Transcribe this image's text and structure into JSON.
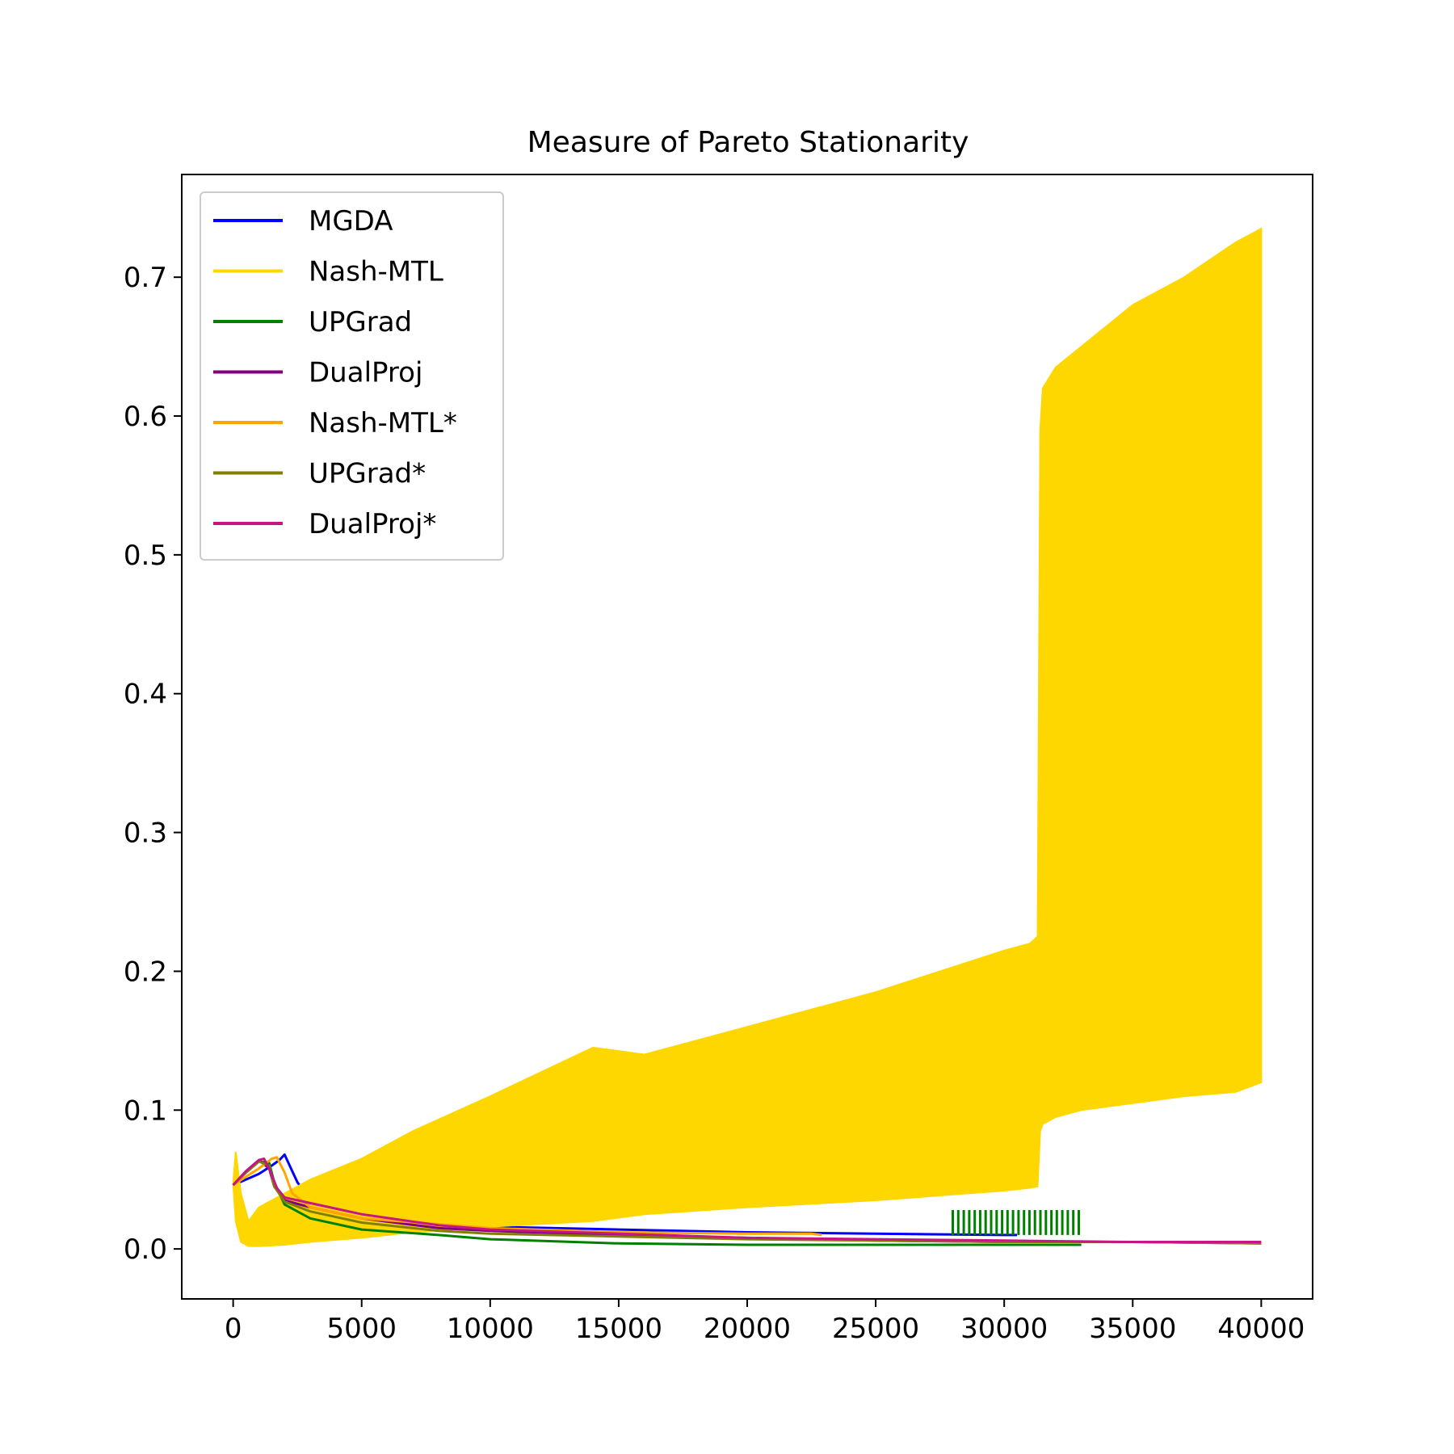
{
  "chart_data": {
    "type": "line",
    "title": "Measure of Pareto Stationarity",
    "xlabel": "",
    "ylabel": "",
    "xlim": [
      -2000,
      42000
    ],
    "ylim": [
      -0.036,
      0.774
    ],
    "x_ticks": [
      0,
      5000,
      10000,
      15000,
      20000,
      25000,
      30000,
      35000,
      40000
    ],
    "x_tick_labels": [
      "0",
      "5000",
      "10000",
      "15000",
      "20000",
      "25000",
      "30000",
      "35000",
      "40000"
    ],
    "y_ticks": [
      0.0,
      0.1,
      0.2,
      0.3,
      0.4,
      0.5,
      0.6,
      0.7
    ],
    "y_tick_labels": [
      "0.0",
      "0.1",
      "0.2",
      "0.3",
      "0.4",
      "0.5",
      "0.6",
      "0.7"
    ],
    "grid": false,
    "legend_position": "upper left",
    "series": [
      {
        "name": "MGDA",
        "color": "#0000ff",
        "x": [
          0,
          500,
          1000,
          1500,
          1800,
          2000,
          2200,
          2500,
          3000,
          5000,
          10000,
          15000,
          20000,
          25000,
          30000,
          30500
        ],
        "y": [
          0.046,
          0.05,
          0.054,
          0.06,
          0.064,
          0.068,
          0.06,
          0.048,
          0.035,
          0.024,
          0.016,
          0.014,
          0.012,
          0.011,
          0.01,
          0.01
        ]
      },
      {
        "name": "Nash-MTL",
        "color": "#ffd700",
        "band": {
          "x": [
            0,
            100,
            300,
            600,
            1000,
            2000,
            3000,
            5000,
            7000,
            10000,
            14000,
            16000,
            20000,
            25000,
            30000,
            31000,
            31300,
            31400,
            31500,
            32000,
            33000,
            35000,
            37000,
            39000,
            40000
          ],
          "upper": [
            0.047,
            0.07,
            0.04,
            0.02,
            0.03,
            0.04,
            0.05,
            0.065,
            0.085,
            0.11,
            0.145,
            0.14,
            0.16,
            0.185,
            0.215,
            0.22,
            0.225,
            0.59,
            0.62,
            0.635,
            0.65,
            0.68,
            0.7,
            0.725,
            0.735
          ],
          "lower": [
            0.047,
            0.02,
            0.005,
            0.002,
            0.002,
            0.003,
            0.005,
            0.008,
            0.012,
            0.016,
            0.02,
            0.025,
            0.03,
            0.035,
            0.042,
            0.044,
            0.045,
            0.085,
            0.09,
            0.095,
            0.1,
            0.105,
            0.11,
            0.113,
            0.12
          ]
        }
      },
      {
        "name": "UPGrad",
        "color": "#008000",
        "x": [
          0,
          500,
          1000,
          1400,
          1600,
          2000,
          3000,
          5000,
          8000,
          10000,
          15000,
          20000,
          25000,
          30000,
          33000
        ],
        "y": [
          0.046,
          0.055,
          0.063,
          0.062,
          0.048,
          0.032,
          0.022,
          0.014,
          0.01,
          0.007,
          0.004,
          0.003,
          0.003,
          0.003,
          0.003
        ],
        "spikes": {
          "x_start": 28000,
          "x_end": 32900,
          "count": 24,
          "peak": 0.028,
          "base": 0.01
        }
      },
      {
        "name": "DualProj",
        "color": "#800080",
        "x": [
          0,
          500,
          1000,
          1400,
          1600,
          2000,
          3000,
          5000,
          8000,
          10000,
          15000,
          20000,
          25000,
          30000,
          35000,
          40000
        ],
        "y": [
          0.046,
          0.056,
          0.064,
          0.058,
          0.045,
          0.035,
          0.03,
          0.022,
          0.015,
          0.013,
          0.01,
          0.008,
          0.006,
          0.005,
          0.005,
          0.004
        ]
      },
      {
        "name": "Nash-MTL*",
        "color": "#ffa500",
        "x": [
          0,
          500,
          1000,
          1500,
          1700,
          2000,
          2300,
          3000,
          5000,
          10000,
          15000,
          20000,
          22500,
          22900
        ],
        "y": [
          0.046,
          0.052,
          0.058,
          0.065,
          0.066,
          0.055,
          0.04,
          0.03,
          0.022,
          0.015,
          0.012,
          0.011,
          0.011,
          0.01
        ]
      },
      {
        "name": "UPGrad*",
        "color": "#808000",
        "x": [
          0,
          500,
          1000,
          1400,
          1600,
          2000,
          3000,
          5000,
          8000,
          10000,
          15000,
          20000,
          25000,
          30000,
          35000,
          40000
        ],
        "y": [
          0.046,
          0.055,
          0.063,
          0.06,
          0.045,
          0.034,
          0.027,
          0.019,
          0.013,
          0.011,
          0.009,
          0.007,
          0.006,
          0.005,
          0.005,
          0.004
        ]
      },
      {
        "name": "DualProj*",
        "color": "#c71585",
        "x": [
          0,
          500,
          1000,
          1200,
          1400,
          1700,
          2000,
          3000,
          5000,
          8000,
          10000,
          15000,
          20000,
          25000,
          30000,
          35000,
          40000
        ],
        "y": [
          0.046,
          0.056,
          0.064,
          0.065,
          0.058,
          0.044,
          0.037,
          0.033,
          0.025,
          0.017,
          0.014,
          0.011,
          0.008,
          0.007,
          0.006,
          0.005,
          0.005
        ]
      }
    ]
  }
}
